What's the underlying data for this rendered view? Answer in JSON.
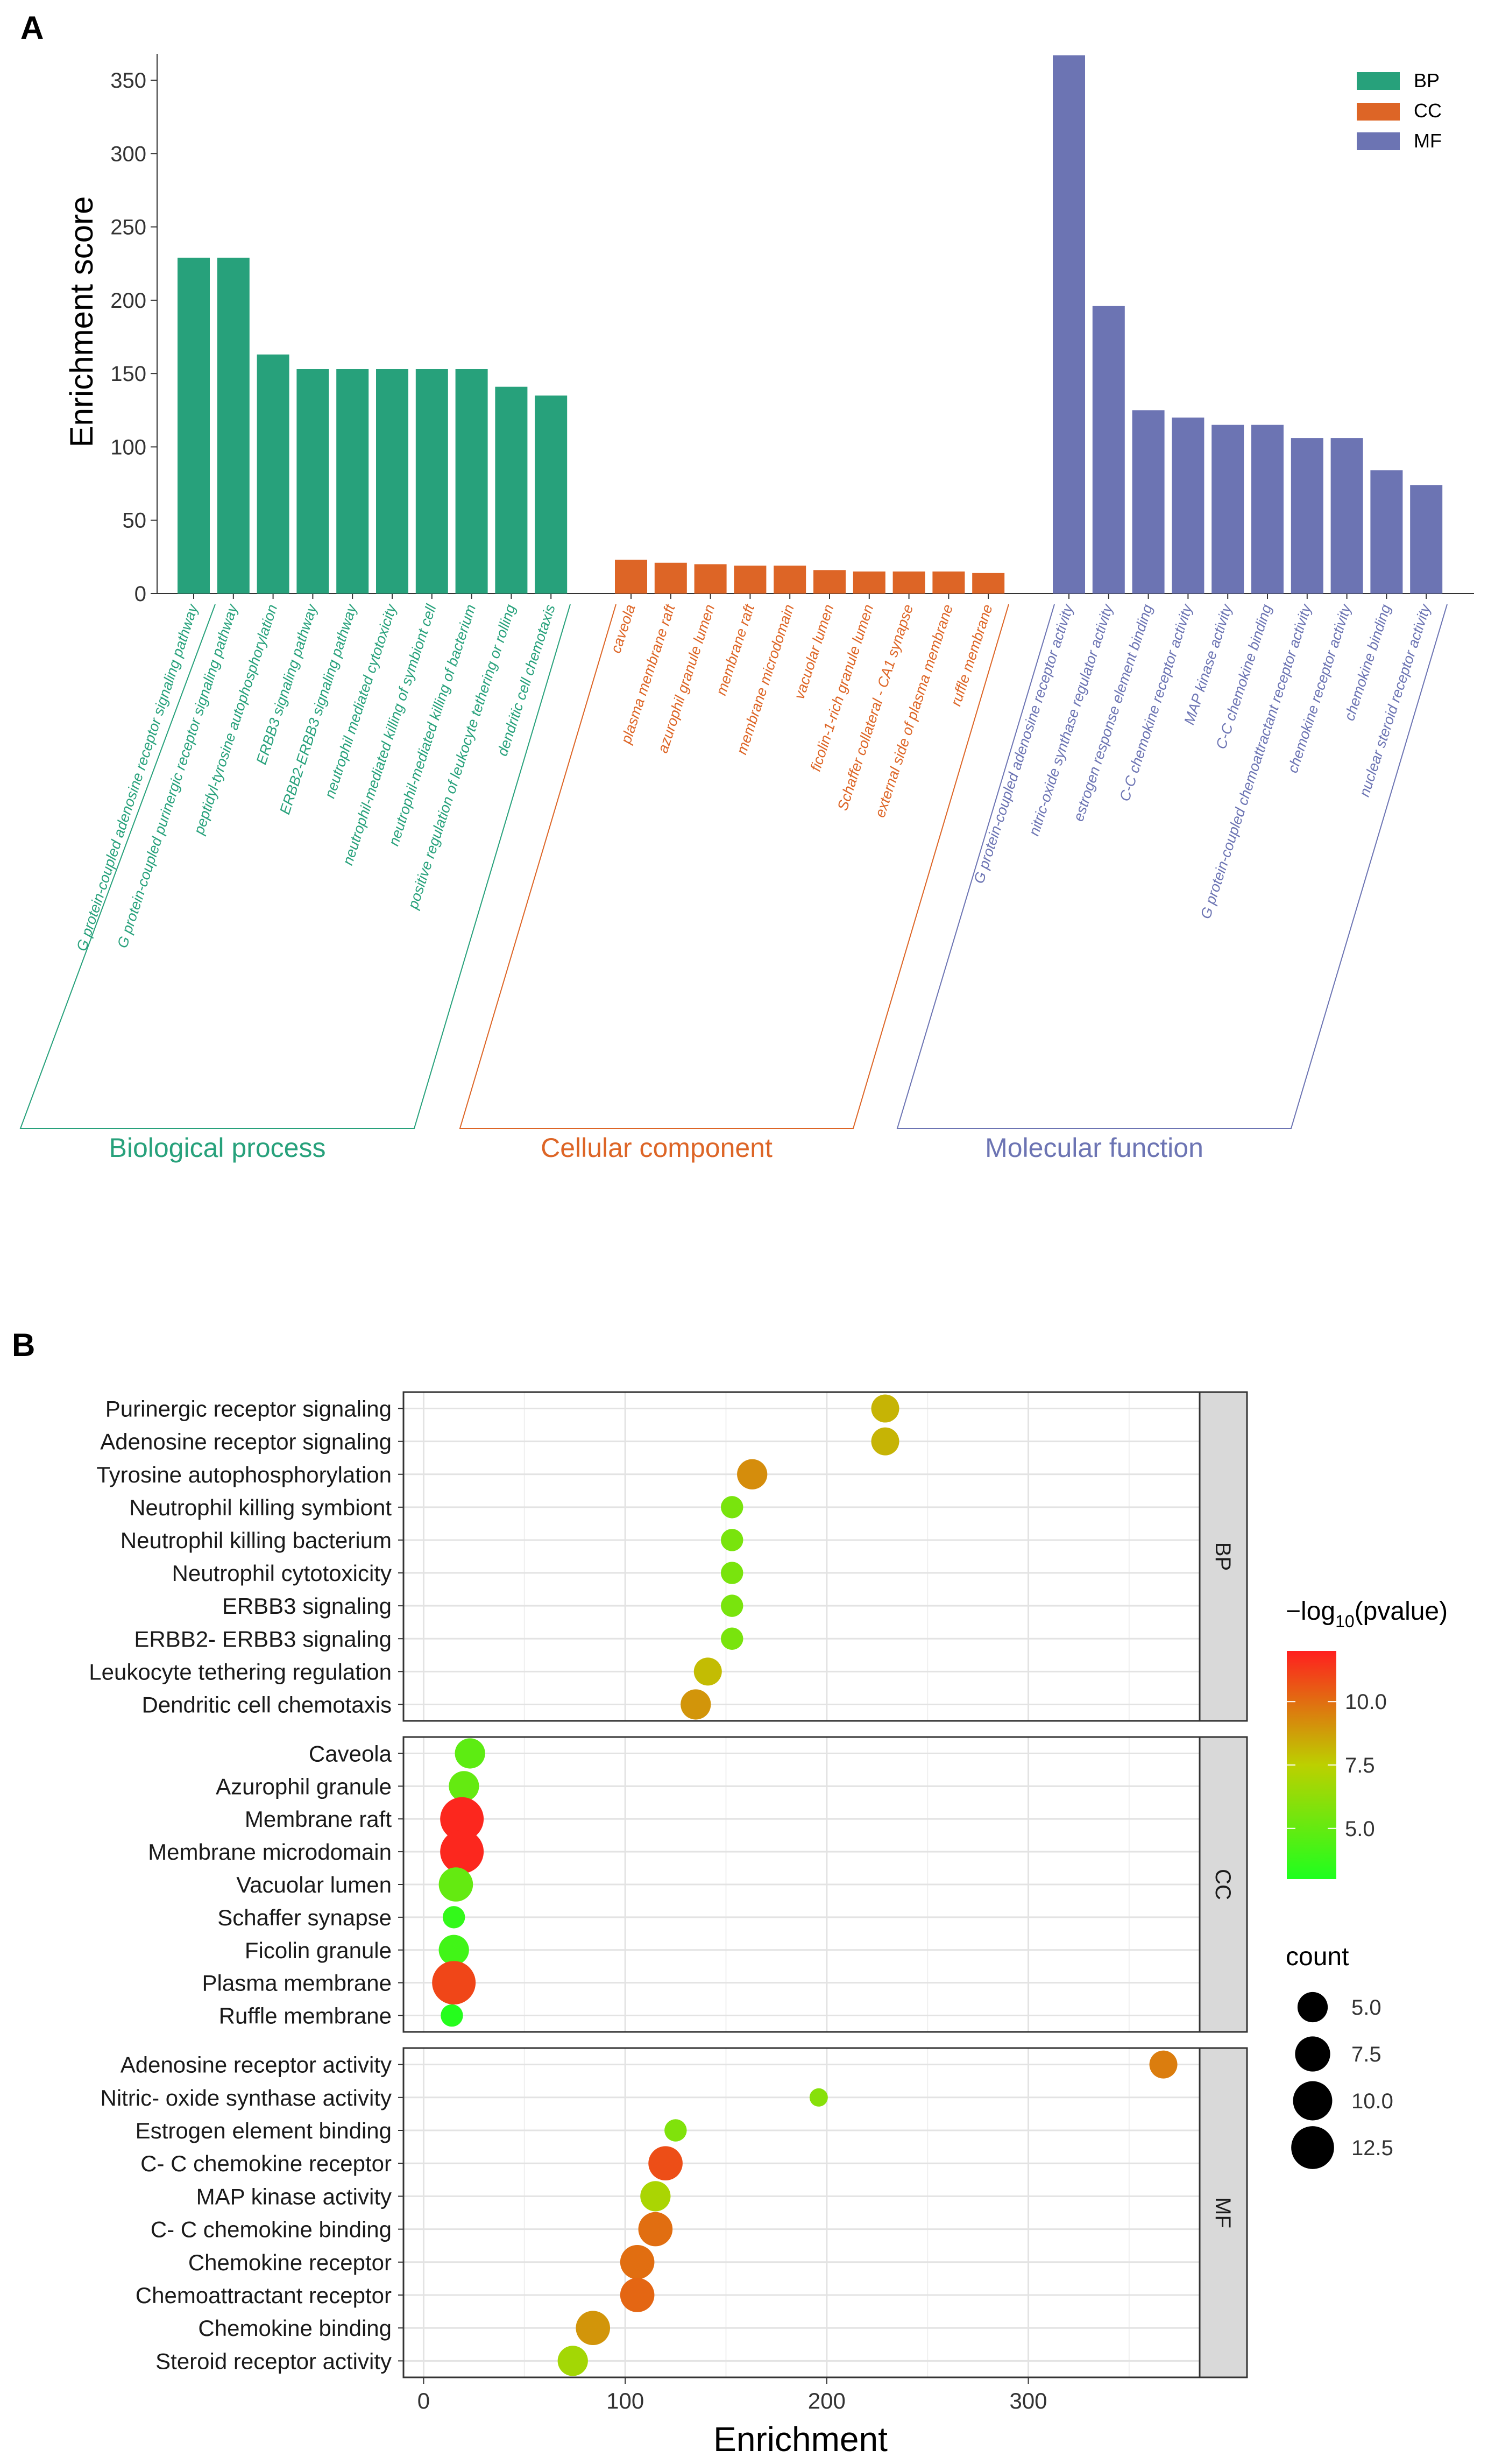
{
  "chart_data": [
    {
      "panel_label": "A",
      "type": "bar",
      "ylabel": "Enrichment score",
      "ylim": [
        0,
        368
      ],
      "yticks": [
        0,
        50,
        100,
        150,
        200,
        250,
        300,
        350
      ],
      "grid": false,
      "legend": {
        "position": "top-right",
        "entries": [
          "BP",
          "CC",
          "MF"
        ]
      },
      "groups": [
        {
          "key": "BP",
          "name": "Biological process",
          "color": "#27a17b",
          "categories": [
            "G protein-coupled adenosine receptor signaling pathway",
            "G protein-coupled purinergic receptor signaling pathway",
            "peptidyl-tyrosine autophosphorylation",
            "ERBB3 signaling pathway",
            "ERBB2-ERBB3 signaling pathway",
            "neutrophil mediated cytotoxicity",
            "neutrophil-mediated killing of symbiont cell",
            "neutrophil-mediated killing of bacterium",
            "positive regulation of leukocyte tethering or rolling",
            "dendritic cell chemotaxis"
          ],
          "values": [
            229,
            229,
            163,
            153,
            153,
            153,
            153,
            153,
            141,
            135
          ]
        },
        {
          "key": "CC",
          "name": "Cellular component",
          "color": "#dd6526",
          "categories": [
            "caveola",
            "plasma membrane raft",
            "azurophil granule lumen",
            "membrane raft",
            "membrane microdomain",
            "vacuolar lumen",
            "ficolin-1-rich granule lumen",
            "Schaffer collateral - CA1 synapse",
            "external side of plasma membrane",
            "ruffle membrane"
          ],
          "values": [
            23,
            21,
            20,
            19,
            19,
            16,
            15,
            15,
            15,
            14
          ]
        },
        {
          "key": "MF",
          "name": "Molecular function",
          "color": "#6c74b3",
          "categories": [
            "G protein-coupled adenosine receptor activity",
            "nitric-oxide synthase regulator activity",
            "estrogen response element binding",
            "C-C chemokine receptor activity",
            "MAP kinase activity",
            "C-C chemokine binding",
            "G protein-coupled chemoattractant receptor activity",
            "chemokine receptor activity",
            "chemokine binding",
            "nuclear steroid receptor activity"
          ],
          "values": [
            367,
            196,
            125,
            120,
            115,
            115,
            106,
            106,
            84,
            74
          ]
        }
      ]
    },
    {
      "panel_label": "B",
      "type": "scatter",
      "xlabel": "Enrichment",
      "xlim": [
        -10,
        385
      ],
      "xticks": [
        0,
        100,
        200,
        300
      ],
      "grid": true,
      "color_legend": {
        "title_prefix": "−log",
        "title_sub": "10",
        "title_suffix": "(pvalue)",
        "ticks": [
          "5.0",
          "7.5",
          "10.0"
        ],
        "tick_values": [
          5.0,
          7.5,
          10.0
        ],
        "range": [
          3.0,
          12.0
        ],
        "low_color": "#1eff1e",
        "mid_color": "#bcd000",
        "high_color": "#ff1f1f"
      },
      "size_legend": {
        "title": "count",
        "labels": [
          "5.0",
          "7.5",
          "10.0",
          "12.5"
        ],
        "values": [
          5.0,
          7.5,
          10.0,
          12.5
        ]
      },
      "facets": [
        {
          "strip": "BP",
          "points": [
            {
              "label": "Purinergic receptor signaling",
              "x": 229,
              "count": 4,
              "logp": 8.2
            },
            {
              "label": "Adenosine receptor signaling",
              "x": 229,
              "count": 4,
              "logp": 8.2
            },
            {
              "label": "Tyrosine autophosphorylation",
              "x": 163,
              "count": 5,
              "logp": 9.2
            },
            {
              "label": "Neutrophil killing symbiont",
              "x": 153,
              "count": 2,
              "logp": 5.6
            },
            {
              "label": "Neutrophil killing bacterium",
              "x": 153,
              "count": 2,
              "logp": 5.6
            },
            {
              "label": "Neutrophil cytotoxicity",
              "x": 153,
              "count": 2,
              "logp": 5.6
            },
            {
              "label": "ERBB3 signaling",
              "x": 153,
              "count": 2,
              "logp": 5.6
            },
            {
              "label": "ERBB2- ERBB3 signaling",
              "x": 153,
              "count": 2,
              "logp": 5.6
            },
            {
              "label": "Leukocyte tethering regulation",
              "x": 141,
              "count": 4,
              "logp": 8.0
            },
            {
              "label": "Dendritic cell chemotaxis",
              "x": 135,
              "count": 5,
              "logp": 9.0
            }
          ]
        },
        {
          "strip": "CC",
          "points": [
            {
              "label": "Caveola",
              "x": 23,
              "count": 5,
              "logp": 4.8
            },
            {
              "label": "Azurophil granule",
              "x": 20,
              "count": 5,
              "logp": 5.0
            },
            {
              "label": "Membrane raft",
              "x": 19,
              "count": 13,
              "logp": 11.8
            },
            {
              "label": "Membrane microdomain",
              "x": 19,
              "count": 13,
              "logp": 11.8
            },
            {
              "label": "Vacuolar lumen",
              "x": 16,
              "count": 7,
              "logp": 5.0
            },
            {
              "label": "Schaffer synapse",
              "x": 15,
              "count": 2,
              "logp": 3.6
            },
            {
              "label": "Ficolin granule",
              "x": 15,
              "count": 5,
              "logp": 4.0
            },
            {
              "label": "Plasma membrane",
              "x": 15,
              "count": 13,
              "logp": 11.0
            },
            {
              "label": "Ruffle membrane",
              "x": 14,
              "count": 2,
              "logp": 3.2
            }
          ]
        },
        {
          "strip": "MF",
          "points": [
            {
              "label": "Adenosine receptor activity",
              "x": 367,
              "count": 4,
              "logp": 9.6
            },
            {
              "label": "Nitric- oxide synthase activity",
              "x": 196,
              "count": 1,
              "logp": 6.0
            },
            {
              "label": "Estrogen element binding",
              "x": 125,
              "count": 2,
              "logp": 5.8
            },
            {
              "label": "C- C chemokine receptor",
              "x": 120,
              "count": 7,
              "logp": 10.8
            },
            {
              "label": "MAP kinase activity",
              "x": 115,
              "count": 5,
              "logp": 7.0
            },
            {
              "label": "C- C chemokine binding",
              "x": 115,
              "count": 7,
              "logp": 10.0
            },
            {
              "label": "Chemokine receptor",
              "x": 106,
              "count": 7,
              "logp": 10.0
            },
            {
              "label": "Chemoattractant receptor",
              "x": 106,
              "count": 7,
              "logp": 10.2
            },
            {
              "label": "Chemokine binding",
              "x": 84,
              "count": 7,
              "logp": 9.0
            },
            {
              "label": "Steroid receptor activity",
              "x": 74,
              "count": 5,
              "logp": 6.8
            }
          ]
        }
      ]
    }
  ]
}
